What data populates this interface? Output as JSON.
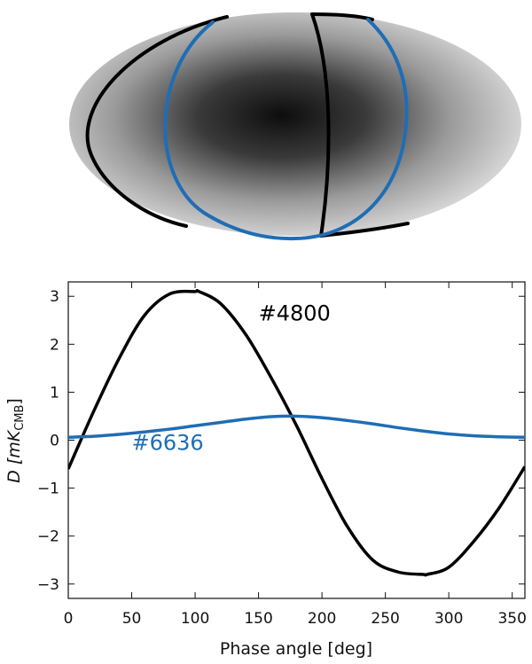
{
  "map_panel": {
    "background_shading": "grayscale dipole, darkest at center",
    "tracks": [
      {
        "label": "#4800",
        "color": "#000000"
      },
      {
        "label": "#6636",
        "color": "#1f6db5"
      }
    ]
  },
  "chart_data": {
    "type": "line",
    "title": "",
    "xlabel": "Phase angle [deg]",
    "ylabel": "D [mK",
    "ylabel_sub": "CMB",
    "ylabel_tail": "]",
    "xlim": [
      0,
      360
    ],
    "ylim": [
      -3.3,
      3.3
    ],
    "xticks": [
      0,
      50,
      100,
      150,
      200,
      250,
      300,
      350
    ],
    "yticks": [
      -3,
      -2,
      -1,
      0,
      1,
      2,
      3
    ],
    "ytick_labels": [
      "−3",
      "−2",
      "−1",
      "0",
      "1",
      "2",
      "3"
    ],
    "grid": false,
    "series": [
      {
        "name": "#4800",
        "color": "#000000",
        "x": [
          0,
          20,
          40,
          60,
          80,
          100,
          103,
          120,
          140,
          160,
          180,
          200,
          220,
          240,
          260,
          280,
          283,
          300,
          320,
          340,
          360
        ],
        "y": [
          -0.6,
          0.6,
          1.7,
          2.6,
          3.05,
          3.1,
          3.1,
          2.85,
          2.2,
          1.3,
          0.3,
          -0.8,
          -1.8,
          -2.5,
          -2.75,
          -2.8,
          -2.8,
          -2.65,
          -2.1,
          -1.4,
          -0.55
        ]
      },
      {
        "name": "#6636",
        "color": "#1f6db5",
        "x": [
          0,
          20,
          40,
          60,
          80,
          100,
          120,
          140,
          160,
          180,
          200,
          220,
          240,
          260,
          280,
          300,
          320,
          340,
          360
        ],
        "y": [
          0.06,
          0.08,
          0.12,
          0.17,
          0.23,
          0.3,
          0.37,
          0.44,
          0.49,
          0.5,
          0.47,
          0.41,
          0.34,
          0.26,
          0.19,
          0.13,
          0.09,
          0.07,
          0.06
        ]
      }
    ],
    "annotations": [
      {
        "text": "#4800",
        "color": "#000000",
        "x": 150,
        "y": 2.5
      },
      {
        "text": "#6636",
        "color": "#1f6db5",
        "x": 50,
        "y": -0.2
      }
    ]
  }
}
